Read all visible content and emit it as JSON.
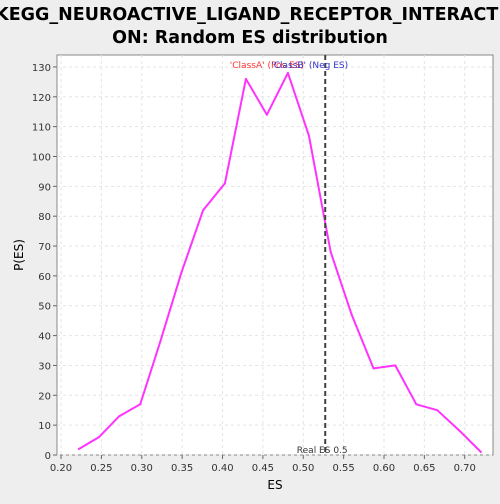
{
  "chart_data": {
    "type": "line",
    "title_line1": "KEGG_NEUROACTIVE_LIGAND_RECEPTOR_INTERACTI",
    "title_line2": "ON: Random ES distribution",
    "xlabel": "ES",
    "ylabel": "P(ES)",
    "xlim": [
      0.195,
      0.735
    ],
    "ylim": [
      0,
      134
    ],
    "x_ticks": [
      0.2,
      0.25,
      0.3,
      0.35,
      0.4,
      0.45,
      0.5,
      0.55,
      0.6,
      0.65,
      0.7
    ],
    "x_tick_labels": [
      "0.20",
      "0.25",
      "0.30",
      "0.35",
      "0.40",
      "0.45",
      "0.50",
      "0.55",
      "0.60",
      "0.65",
      "0.70"
    ],
    "y_ticks": [
      0,
      10,
      20,
      30,
      40,
      50,
      60,
      70,
      80,
      90,
      100,
      110,
      120,
      130
    ],
    "y_tick_labels": [
      "0",
      "10",
      "20",
      "30",
      "40",
      "50",
      "60",
      "70",
      "80",
      "90",
      "100",
      "110",
      "120",
      "130"
    ],
    "grid": true,
    "series": [
      {
        "color": "#ff33ff",
        "x": [
          0.222,
          0.247,
          0.272,
          0.298,
          0.323,
          0.349,
          0.376,
          0.403,
          0.429,
          0.455,
          0.481,
          0.507,
          0.534,
          0.56,
          0.587,
          0.614,
          0.64,
          0.666,
          0.694,
          0.72
        ],
        "y": [
          2,
          6,
          13,
          17,
          38,
          61,
          82,
          91,
          126,
          114,
          128,
          107,
          68,
          47,
          29,
          30,
          17,
          15,
          8,
          1
        ]
      }
    ],
    "real_es": {
      "value": 0.5272,
      "label": "Real ES 0.5",
      "color": "#404040"
    },
    "annotations": [
      {
        "text": "'ClassA' (Pos ES)",
        "color": "#ff3333",
        "x": 0.455
      },
      {
        "text": "'ClassB' (Neg ES)",
        "color": "#3333cc",
        "x": 0.508
      }
    ]
  }
}
